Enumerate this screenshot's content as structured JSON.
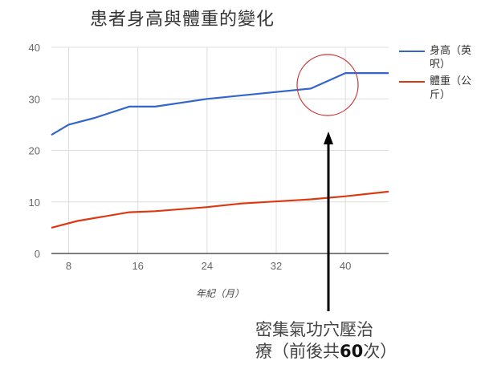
{
  "title": "患者身高與體重的變化",
  "chart_data": {
    "type": "line",
    "title": "患者身高與體重的變化",
    "xlabel": "年紀（月）",
    "ylabel": "",
    "xlim": [
      6,
      45
    ],
    "ylim": [
      0,
      40
    ],
    "x_ticks": [
      8,
      16,
      24,
      32,
      40
    ],
    "y_ticks": [
      0,
      10,
      20,
      30,
      40
    ],
    "grid": true,
    "legend_position": "right",
    "series": [
      {
        "name": "身高（英呎）",
        "color": "#3366cc",
        "points": [
          [
            6,
            23
          ],
          [
            8,
            25
          ],
          [
            11,
            26.3
          ],
          [
            15,
            28.5
          ],
          [
            18,
            28.5
          ],
          [
            24,
            30
          ],
          [
            30,
            31
          ],
          [
            36,
            32
          ],
          [
            40,
            35
          ],
          [
            45,
            35
          ]
        ]
      },
      {
        "name": "體重（公斤）",
        "color": "#dc3912",
        "points": [
          [
            6,
            5
          ],
          [
            9,
            6.3
          ],
          [
            15,
            8
          ],
          [
            18,
            8.2
          ],
          [
            24,
            9
          ],
          [
            28,
            9.7
          ],
          [
            36,
            10.5
          ],
          [
            40,
            11.1
          ],
          [
            45,
            12
          ]
        ]
      }
    ],
    "annotations": [
      {
        "type": "circle",
        "color": "#cc3333",
        "center_x": 38,
        "center_y": 32,
        "note": "highlights height jump between month 36 and 40"
      },
      {
        "type": "arrow",
        "x": 38,
        "text": "密集氣功穴壓治療（前後共60次）"
      }
    ]
  },
  "legend": [
    {
      "line1": "身高（英",
      "line2": "呎）",
      "color": "#3366cc"
    },
    {
      "line1": "體重（公",
      "line2": "斤）",
      "color": "#dc3912"
    }
  ],
  "annotation": {
    "line1": "密集氣功穴壓治",
    "line2_pre": "療（前後共",
    "line2_num": "60",
    "line2_post": "次）"
  }
}
